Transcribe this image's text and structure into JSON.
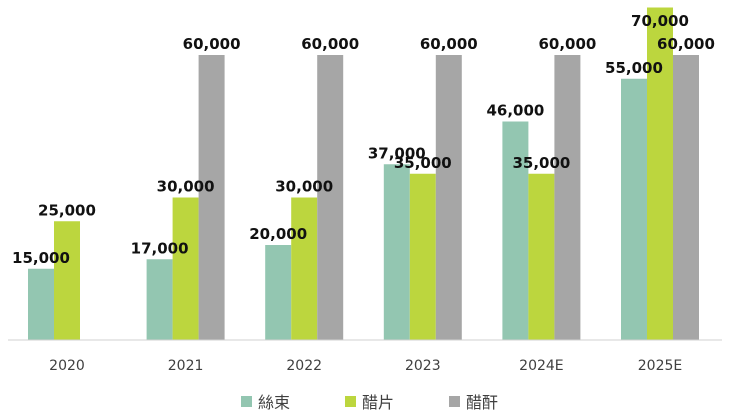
{
  "chart_data": {
    "type": "bar",
    "categories": [
      "2020",
      "2021",
      "2022",
      "2023",
      "2024E",
      "2025E"
    ],
    "series": [
      {
        "name": "絲束",
        "color": "#93c6b1",
        "values": [
          15000,
          17000,
          20000,
          37000,
          46000,
          55000
        ]
      },
      {
        "name": "醋片",
        "color": "#bcd63e",
        "values": [
          25000,
          30000,
          30000,
          35000,
          35000,
          70000
        ]
      },
      {
        "name": "醋酐",
        "color": "#a6a6a6",
        "values": [
          null,
          60000,
          60000,
          60000,
          60000,
          60000
        ]
      }
    ],
    "value_labels": [
      [
        "15,000",
        "17,000",
        "20,000",
        "37,000",
        "46,000",
        "55,000"
      ],
      [
        "25,000",
        "30,000",
        "30,000",
        "35,000",
        "35,000",
        "70,000"
      ],
      [
        null,
        "60,000",
        "60,000",
        "60,000",
        "60,000",
        "60,000"
      ]
    ],
    "title": "",
    "xlabel": "",
    "ylabel": "",
    "ylim": [
      0,
      70000
    ],
    "grid": false,
    "legend_position": "bottom"
  }
}
